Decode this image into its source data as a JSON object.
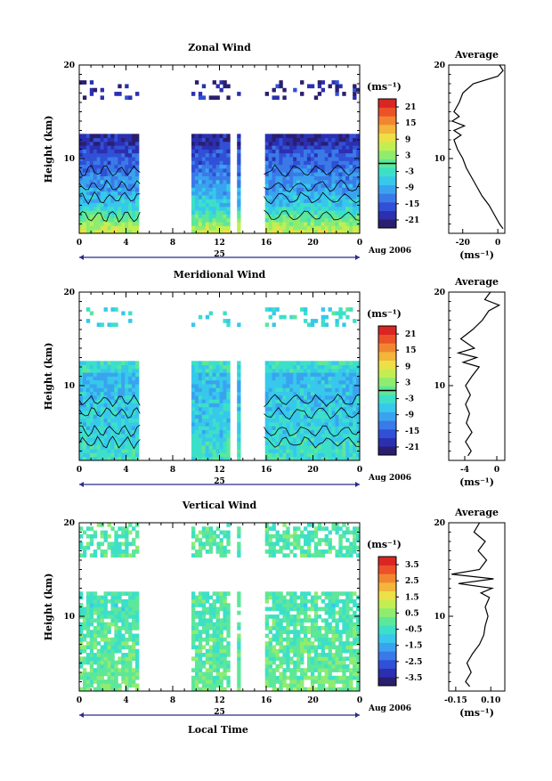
{
  "chart_data": [
    {
      "type": "heatmap",
      "title": "Zonal Wind",
      "ylabel": "Height (km)",
      "ylim": [
        2,
        20
      ],
      "yticks": [
        "20",
        "10"
      ],
      "xticks": [
        "0",
        "4",
        "8",
        "12",
        "16",
        "20",
        "0"
      ],
      "xlim": [
        0,
        24
      ],
      "day_label": "25",
      "date_label": "Aug 2006",
      "units": "(ms⁻¹)",
      "colorbar": {
        "ticks": [
          "21",
          "15",
          "9",
          "3",
          "-3",
          "-9",
          "-15",
          "-21"
        ],
        "min": -24,
        "max": 24,
        "contour_level": 0
      },
      "data_gaps": [
        [
          5.2,
          9.7
        ],
        [
          13.0,
          13.5
        ],
        [
          13.8,
          15.8
        ]
      ],
      "field": {
        "low_level_value": 8,
        "mid_value": -6,
        "upper_value": -18,
        "jet_height": 11.5,
        "top_value": -20
      },
      "average": {
        "title": "Average",
        "xlabel": "(ms⁻¹)",
        "xticks": [
          "-20",
          "0"
        ],
        "xlim": [
          -28,
          4
        ],
        "profile": [
          {
            "h": 2.5,
            "v": 3
          },
          {
            "h": 3,
            "v": 1
          },
          {
            "h": 4,
            "v": -2
          },
          {
            "h": 5,
            "v": -5
          },
          {
            "h": 6,
            "v": -9
          },
          {
            "h": 7,
            "v": -12
          },
          {
            "h": 8,
            "v": -15
          },
          {
            "h": 9,
            "v": -18
          },
          {
            "h": 10,
            "v": -20
          },
          {
            "h": 11,
            "v": -23
          },
          {
            "h": 12,
            "v": -25
          },
          {
            "h": 12.5,
            "v": -21
          },
          {
            "h": 13,
            "v": -25
          },
          {
            "h": 13.5,
            "v": -19
          },
          {
            "h": 14,
            "v": -26
          },
          {
            "h": 14.5,
            "v": -22
          },
          {
            "h": 15,
            "v": -25
          },
          {
            "h": 16,
            "v": -22
          },
          {
            "h": 17,
            "v": -20
          },
          {
            "h": 18,
            "v": -14
          },
          {
            "h": 18.8,
            "v": 0
          },
          {
            "h": 19.4,
            "v": 3
          },
          {
            "h": 20,
            "v": 1
          }
        ]
      }
    },
    {
      "type": "heatmap",
      "title": "Meridional Wind",
      "ylabel": "Height (km)",
      "ylim": [
        2,
        20
      ],
      "yticks": [
        "20",
        "10"
      ],
      "xticks": [
        "0",
        "4",
        "8",
        "12",
        "16",
        "20",
        "0"
      ],
      "xlim": [
        0,
        24
      ],
      "day_label": "25",
      "date_label": "Aug 2006",
      "units": "(ms⁻¹)",
      "colorbar": {
        "ticks": [
          "21",
          "15",
          "9",
          "3",
          "-3",
          "-9",
          "-15",
          "-21"
        ],
        "min": -24,
        "max": 24,
        "contour_level": 0
      },
      "data_gaps": [
        [
          5.2,
          9.7
        ],
        [
          13.0,
          13.5
        ],
        [
          13.8,
          15.8
        ]
      ],
      "field": {
        "low_level_value": -3,
        "mid_value": -5,
        "upper_value": -8,
        "jet_height": 11.5,
        "top_value": -4
      },
      "average": {
        "title": "Average",
        "xlabel": "(ms⁻¹)",
        "xticks": [
          "-4",
          "0"
        ],
        "xlim": [
          -6,
          1
        ],
        "profile": [
          {
            "h": 2.5,
            "v": -3.6
          },
          {
            "h": 3,
            "v": -3.2
          },
          {
            "h": 4,
            "v": -3.9
          },
          {
            "h": 5,
            "v": -3.1
          },
          {
            "h": 6,
            "v": -3.8
          },
          {
            "h": 7,
            "v": -3.4
          },
          {
            "h": 8,
            "v": -3.9
          },
          {
            "h": 9,
            "v": -3.3
          },
          {
            "h": 10,
            "v": -3.9
          },
          {
            "h": 11,
            "v": -3.1
          },
          {
            "h": 12,
            "v": -2.2
          },
          {
            "h": 12.5,
            "v": -4.2
          },
          {
            "h": 13,
            "v": -2.5
          },
          {
            "h": 13.5,
            "v": -4.8
          },
          {
            "h": 14,
            "v": -2.8
          },
          {
            "h": 15,
            "v": -4.5
          },
          {
            "h": 16,
            "v": -3.0
          },
          {
            "h": 17,
            "v": -1.8
          },
          {
            "h": 18,
            "v": -1.0
          },
          {
            "h": 18.6,
            "v": 0.3
          },
          {
            "h": 19.2,
            "v": -1.5
          },
          {
            "h": 20,
            "v": -0.8
          }
        ]
      }
    },
    {
      "type": "heatmap",
      "title": "Vertical Wind",
      "ylabel": "Height (km)",
      "ylim": [
        2,
        20
      ],
      "yticks": [
        "20",
        "10"
      ],
      "xticks": [
        "0",
        "4",
        "8",
        "12",
        "16",
        "20",
        "0"
      ],
      "xlim": [
        0,
        24
      ],
      "day_label": "25",
      "date_label": "Aug 2006",
      "units": "(ms⁻¹)",
      "colorbar": {
        "ticks": [
          "3.5",
          "2.5",
          "1.5",
          "0.5",
          "-0.5",
          "-1.5",
          "-2.5",
          "-3.5"
        ],
        "min": -4,
        "max": 4,
        "contour_level": null
      },
      "data_gaps": [
        [
          5.2,
          9.7
        ],
        [
          13.0,
          13.5
        ],
        [
          13.8,
          15.8
        ]
      ],
      "field": {
        "low_level_value": 0.3,
        "mid_value": 0.0,
        "upper_value": -0.3,
        "jet_height": 11.5,
        "top_value": -0.2
      },
      "average": {
        "title": "Average",
        "xlabel": "(ms⁻¹)",
        "xticks": [
          "-0.15",
          "0.10"
        ],
        "xlim": [
          -0.2,
          0.2
        ],
        "profile": [
          {
            "h": 2.5,
            "v": -0.05
          },
          {
            "h": 3,
            "v": -0.08
          },
          {
            "h": 4,
            "v": -0.04
          },
          {
            "h": 5,
            "v": -0.07
          },
          {
            "h": 6,
            "v": -0.03
          },
          {
            "h": 7,
            "v": 0.02
          },
          {
            "h": 8,
            "v": 0.05
          },
          {
            "h": 9,
            "v": 0.06
          },
          {
            "h": 10,
            "v": 0.08
          },
          {
            "h": 11,
            "v": 0.06
          },
          {
            "h": 12,
            "v": 0.09
          },
          {
            "h": 12.5,
            "v": 0.03
          },
          {
            "h": 13,
            "v": 0.11
          },
          {
            "h": 13.5,
            "v": -0.13
          },
          {
            "h": 14,
            "v": 0.12
          },
          {
            "h": 14.5,
            "v": -0.18
          },
          {
            "h": 15,
            "v": 0.02
          },
          {
            "h": 16,
            "v": 0.07
          },
          {
            "h": 17,
            "v": 0.01
          },
          {
            "h": 18,
            "v": 0.06
          },
          {
            "h": 19,
            "v": -0.02
          },
          {
            "h": 20,
            "v": 0.02
          }
        ]
      }
    }
  ],
  "xlabel": "Local Time",
  "colors": [
    "#2a1e6e",
    "#2b2fb0",
    "#3050d6",
    "#3a7ae8",
    "#3aa3ef",
    "#37c8ec",
    "#3ce0c8",
    "#5de79a",
    "#8eec70",
    "#c3ee52",
    "#ece046",
    "#f3b53a",
    "#f28630",
    "#ec5128",
    "#d92622"
  ]
}
